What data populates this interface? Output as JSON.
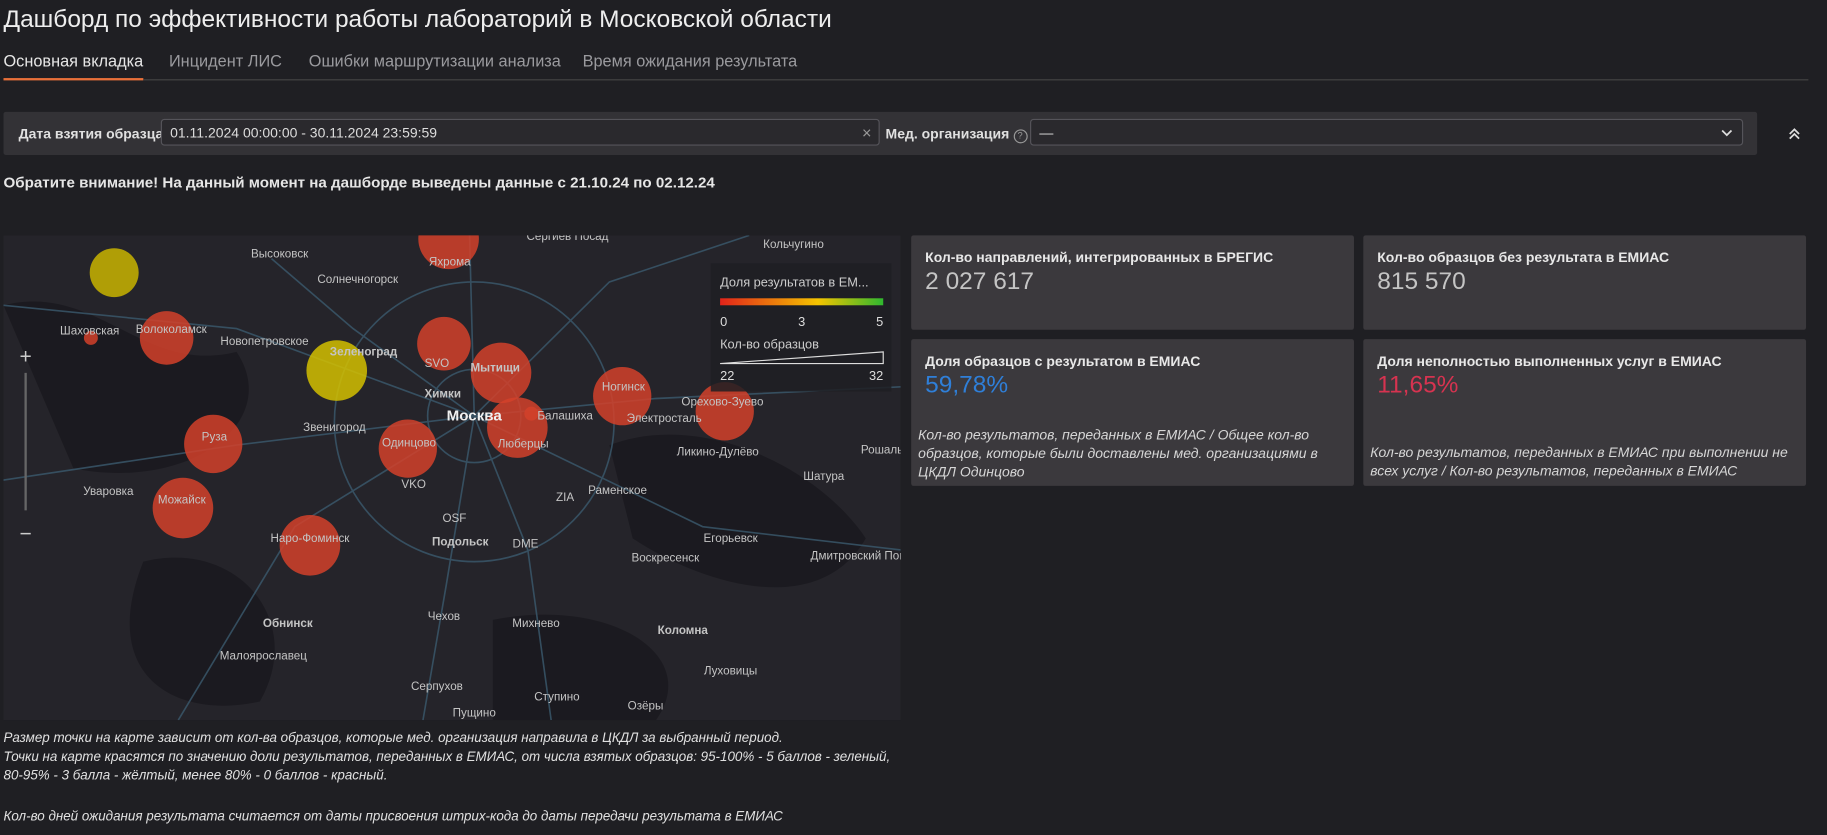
{
  "header": {
    "title": "Дашборд по эффективности работы лабораторий в Московской области"
  },
  "tabs": [
    "Основная вкладка",
    "Инцидент ЛИС",
    "Ошибки маршрутизации анализа",
    "Время ожидания результата"
  ],
  "filters": {
    "date_label": "Дата взятия образца",
    "date_value": "01.11.2024 00:00:00 - 30.11.2024 23:59:59",
    "org_label": "Мед. организация",
    "org_value": "—"
  },
  "notice": "Обратите внимание! На данный момент на дашборде выведены данные с 21.10.24 по 02.12.24",
  "map": {
    "places": [
      "Высоковск",
      "Солнечногорск",
      "Сергиев Посад",
      "Кольчугино",
      "Яхрома",
      "Шаховская",
      "Волоколамск",
      "Новопетровское",
      "Зеленоград",
      "SVO",
      "Мытищи",
      "Ногинск",
      "Орехово-Зуево",
      "Химки",
      "Москва",
      "Балашиха",
      "Электросталь",
      "Звенигород",
      "Руза",
      "Одинцово",
      "Люберцы",
      "Ликино-Дулёво",
      "Рошаль",
      "VKO",
      "Уваровка",
      "Раменское",
      "ZIA",
      "Шатура",
      "Можайск",
      "OSF",
      "Подольск",
      "DME",
      "Наро-Фоминск",
      "Егорьевск",
      "Дмитровский Погост",
      "Воскресенск",
      "Обнинск",
      "Чехов",
      "Михнево",
      "Коломна",
      "Малоярославец",
      "Луховицы",
      "Серпухов",
      "Ступино",
      "Озёры",
      "Пущино"
    ],
    "legend": {
      "color_title": "Доля результатов в ЕМ...",
      "color_ticks": [
        0,
        3,
        5
      ],
      "size_title": "Кол-во образцов",
      "size_ticks": [
        22,
        32
      ]
    }
  },
  "cards": [
    {
      "title": "Кол-во направлений, интегрированных в БРЕГИС",
      "value": "2 027 617"
    },
    {
      "title": "Кол-во образцов без результата в ЕМИАС",
      "value": "815 570"
    },
    {
      "title": "Доля образцов с результатом в ЕМИАС",
      "value": "59,78%",
      "note": "Кол-во результатов, переданных в ЕМИАС / Общее кол-во образцов, которые были доставлены мед. организациями в ЦКДЛ Одинцово"
    },
    {
      "title": "Доля неполностью выполненных услуг в ЕМИАС",
      "value": "11,65%",
      "note": "Кол-во результатов, переданных в ЕМИАС при выполнении не всех услуг / Кол-во результатов, переданных в ЕМИАС"
    }
  ],
  "footnotes": [
    "Размер точки на карте зависит от кол-ва образцов, которые мед. организация направила в ЦКДЛ за выбранный период.",
    "Точки на карте красятся по значению доли результатов, переданных в ЕМИАС, от числа взятых образцов: 95-100% - 5 баллов - зеленый, 80-95% - 3 балла - жёлтый, менее 80% - 0 баллов - красный.",
    "Кол-во дней ожидания результата считается от даты присвоения штрих-кода до даты передачи результата в ЕМИАС"
  ]
}
